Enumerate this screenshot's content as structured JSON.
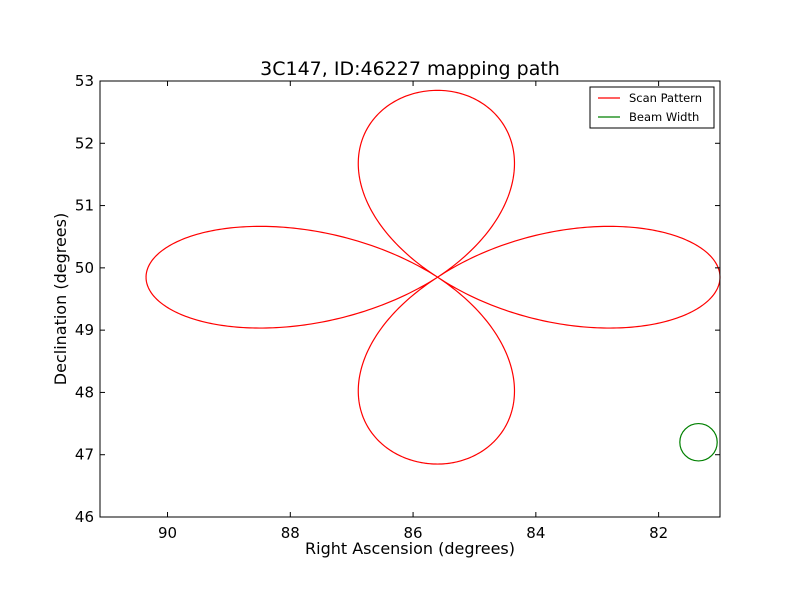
{
  "chart_data": {
    "type": "line",
    "title": "3C147, ID:46227 mapping path",
    "xlabel": "Right Ascension (degrees)",
    "ylabel": "Declination (degrees)",
    "xlim": [
      91.1,
      81.0
    ],
    "ylim": [
      46,
      53
    ],
    "xticks": [
      90,
      88,
      86,
      84,
      82
    ],
    "yticks": [
      46,
      47,
      48,
      49,
      50,
      51,
      52,
      53
    ],
    "grid": false,
    "legend_position": "top-right",
    "center": {
      "x": 85.6,
      "y": 49.85
    },
    "series": [
      {
        "name": "Scan Pattern",
        "color": "#ff0000",
        "pattern": "four-petal rose (rhodonea) curve centred on the source",
        "x_extent": [
          81.0,
          90.35
        ],
        "y_extent": [
          46.85,
          52.85
        ]
      },
      {
        "name": "Beam Width",
        "color": "#008000",
        "pattern": "circle",
        "center": {
          "x": 81.35,
          "y": 47.2
        },
        "radius_deg": 0.3
      }
    ]
  }
}
